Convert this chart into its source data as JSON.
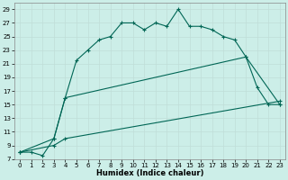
{
  "title": "",
  "xlabel": "Humidex (Indice chaleur)",
  "bg_color": "#cceee8",
  "grid_color": "#c0ddd8",
  "line_color": "#006655",
  "xlim": [
    -0.5,
    23.5
  ],
  "ylim": [
    7,
    30
  ],
  "xticks": [
    0,
    1,
    2,
    3,
    4,
    5,
    6,
    7,
    8,
    9,
    10,
    11,
    12,
    13,
    14,
    15,
    16,
    17,
    18,
    19,
    20,
    21,
    22,
    23
  ],
  "yticks": [
    7,
    9,
    11,
    13,
    15,
    17,
    19,
    21,
    23,
    25,
    27,
    29
  ],
  "curve1_x": [
    0,
    1,
    2,
    3,
    4,
    5,
    6,
    7,
    8,
    9,
    10,
    11,
    12,
    13,
    14,
    15,
    16,
    17,
    18,
    19,
    20,
    21,
    22,
    23
  ],
  "curve1_y": [
    8,
    8,
    7.5,
    10,
    16,
    21.5,
    23,
    24.5,
    25,
    27,
    27,
    26,
    27,
    26.5,
    29,
    26.5,
    26.5,
    26,
    25,
    24.5,
    22,
    17.5,
    15,
    15
  ],
  "curve2_x": [
    0,
    3,
    4,
    20,
    23
  ],
  "curve2_y": [
    8,
    10,
    16,
    22,
    15
  ],
  "curve3_x": [
    0,
    3,
    4,
    23
  ],
  "curve3_y": [
    8,
    9,
    10,
    15.5
  ],
  "marker": "+",
  "markersize": 3,
  "linewidth": 0.8,
  "tick_fontsize": 5,
  "xlabel_fontsize": 6
}
